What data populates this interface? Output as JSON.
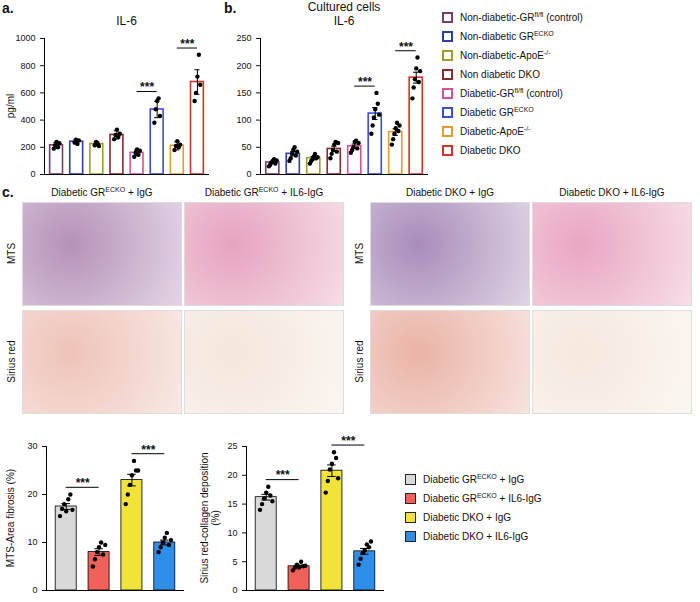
{
  "chart_data": [
    {
      "type": "bar",
      "panel": "a.",
      "title": "IL-6",
      "y_label": "pg/ml",
      "categories": [
        "Non-diabetic-GRfl/fl (control)",
        "Non-diabetic GRECKO",
        "Non-diabetic-ApoE-/-",
        "Non diabetic DKO",
        "Diabetic-GRfl/fl (control)",
        "Diabetic GRECKO",
        "Diabetic-ApoE-/-",
        "Diabetic DKO"
      ],
      "values": [
        215,
        241,
        224,
        291,
        159,
        478,
        211,
        680
      ],
      "errors": [
        20,
        15,
        15,
        30,
        20,
        60,
        30,
        90
      ],
      "points": [
        [
          190,
          215,
          240,
          200,
          230
        ],
        [
          235,
          255,
          225,
          250
        ],
        [
          215,
          240,
          230,
          210
        ],
        [
          260,
          290,
          330,
          275,
          300
        ],
        [
          130,
          160,
          185,
          145,
          175
        ],
        [
          380,
          480,
          540,
          560,
          430
        ],
        [
          180,
          210,
          245,
          200,
          220
        ],
        [
          540,
          600,
          720,
          880,
          660
        ]
      ],
      "colors": [
        "#7a3b69",
        "#2b3ea8",
        "#a39a2a",
        "#8b2a2a",
        "#d94fa0",
        "#3a4fd8",
        "#e89a2a",
        "#d9302a"
      ],
      "ylim": [
        0,
        1000
      ],
      "yticks": [
        0,
        200,
        400,
        600,
        800,
        1000
      ],
      "tick_labels": "y",
      "legend": "right",
      "annotations": [
        {
          "from": 4,
          "to": 5,
          "text": "***"
        },
        {
          "from": 6,
          "to": 7,
          "text": "***"
        }
      ]
    },
    {
      "type": "bar",
      "panel": "b.",
      "title": "Cultured cells",
      "subtitle": "IL-6",
      "categories": [
        "Non-diabetic-GRfl/fl (control)",
        "Non-diabetic GRECKO",
        "Non-diabetic-ApoE-/-",
        "Non diabetic DKO",
        "Diabetic-GRfl/fl (control)",
        "Diabetic GRECKO",
        "Diabetic-ApoE-/-",
        "Diabetic DKO"
      ],
      "values": [
        22,
        38,
        30,
        47,
        52,
        112,
        78,
        178
      ],
      "errors": [
        2,
        4,
        3,
        5,
        4,
        11,
        6,
        10
      ],
      "points": [
        [
          15,
          18,
          22,
          25,
          28,
          20,
          26
        ],
        [
          25,
          30,
          38,
          45,
          50,
          35,
          42
        ],
        [
          20,
          25,
          28,
          33,
          38,
          30,
          32
        ],
        [
          30,
          38,
          45,
          55,
          60,
          42,
          58
        ],
        [
          40,
          45,
          50,
          60,
          62,
          48,
          58
        ],
        [
          75,
          90,
          105,
          120,
          150,
          130,
          110
        ],
        [
          55,
          65,
          75,
          85,
          95,
          80,
          90
        ],
        [
          140,
          160,
          175,
          195,
          215,
          170,
          190
        ]
      ],
      "colors": [
        "#7a3b69",
        "#2b3ea8",
        "#a39a2a",
        "#8b2a2a",
        "#d94fa0",
        "#3a4fd8",
        "#e89a2a",
        "#d9302a"
      ],
      "ylim": [
        0,
        250
      ],
      "yticks": [
        0,
        50,
        100,
        150,
        200,
        250
      ],
      "tick_labels": "y",
      "annotations": [
        {
          "from": 4,
          "to": 5,
          "text": "***"
        },
        {
          "from": 6,
          "to": 7,
          "text": "***"
        }
      ]
    },
    {
      "type": "bar",
      "y_label": "MTS-Area fibrosis (%)",
      "categories": [
        "Diabetic GRECKO + IgG",
        "Diabetic GRECKO + IL6-IgG",
        "Diabetic DKO + IgG",
        "Diabetic DKO + IL6-IgG"
      ],
      "values": [
        17.5,
        8,
        23,
        10
      ],
      "errors": [
        0.6,
        0.7,
        1.2,
        0.5
      ],
      "points": [
        [
          15.5,
          17,
          18,
          16.5,
          19,
          20,
          16.8
        ],
        [
          5,
          6.5,
          8,
          9,
          10,
          7.5,
          9.5
        ],
        [
          18,
          20,
          22,
          24,
          27,
          25,
          25
        ],
        [
          8,
          9,
          10,
          11,
          12,
          9.5,
          10.5
        ]
      ],
      "colors": [
        "#d9d9d9",
        "#f0615a",
        "#f2e33a",
        "#2f8fe8"
      ],
      "ylim": [
        0,
        30
      ],
      "yticks": [
        0,
        10,
        20,
        30
      ],
      "tick_labels": "y",
      "legend": "right",
      "annotations": [
        {
          "from": 0,
          "to": 1,
          "text": "***"
        },
        {
          "from": 2,
          "to": 3,
          "text": "***"
        }
      ]
    },
    {
      "type": "bar",
      "y_label": "Sirius red-collagen deposition (%)",
      "categories": [
        "Diabetic GRECKO + IgG",
        "Diabetic GRECKO + IL6-IgG",
        "Diabetic DKO + IgG",
        "Diabetic DKO + IL6-IgG"
      ],
      "values": [
        16.2,
        4.2,
        20.8,
        6.8
      ],
      "errors": [
        0.5,
        0.2,
        1,
        0.5
      ],
      "points": [
        [
          14,
          15,
          16,
          17,
          18,
          16.5,
          15.5
        ],
        [
          3.5,
          4,
          4.5,
          4,
          5,
          4.2,
          4.3
        ],
        [
          17,
          19,
          21,
          22,
          24,
          23,
          19.5
        ],
        [
          4.5,
          5.5,
          6.5,
          7,
          8,
          7.5,
          8.5
        ]
      ],
      "colors": [
        "#d9d9d9",
        "#f0615a",
        "#f2e33a",
        "#2f8fe8"
      ],
      "ylim": [
        0,
        25
      ],
      "yticks": [
        0,
        5,
        10,
        15,
        20,
        25
      ],
      "tick_labels": "y",
      "annotations": [
        {
          "from": 0,
          "to": 1,
          "text": "***"
        },
        {
          "from": 2,
          "to": 3,
          "text": "***"
        }
      ]
    }
  ],
  "micrographs": {
    "panel": "c.",
    "columns": [
      "Diabetic GRECKO + IgG",
      "Diabetic GRECKO + IL6-IgG",
      "Diabetic DKO + IgG",
      "Diabetic DKO + IL6-IgG"
    ],
    "rows": [
      "MTS",
      "Sirius red"
    ]
  }
}
